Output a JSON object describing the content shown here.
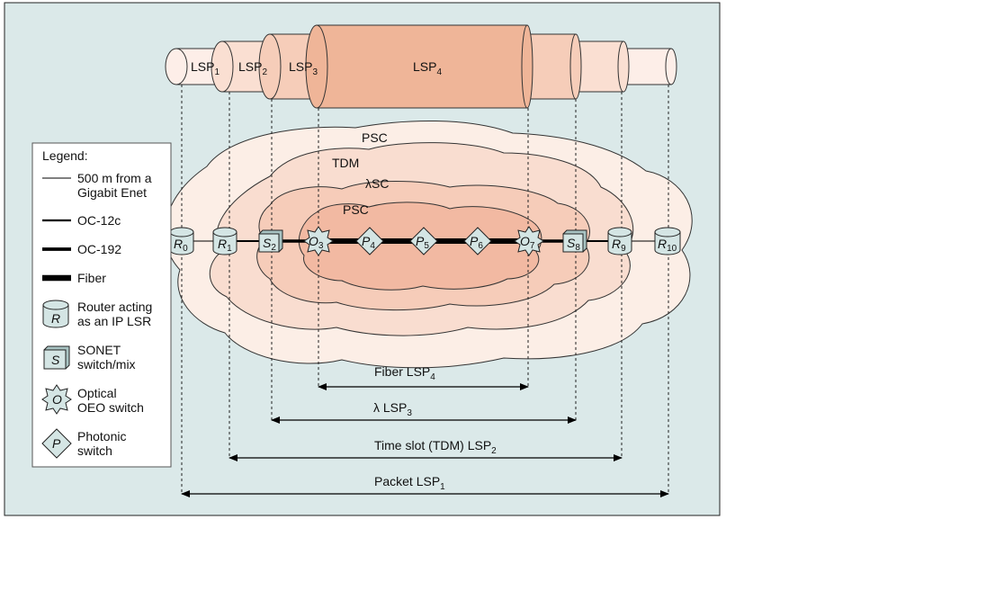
{
  "colors": {
    "panel": "#dbe9e9",
    "cloud_outer": "#fceee6",
    "cloud_tdm": "#f9ddd0",
    "cloud_lsc": "#f6ccb9",
    "cloud_inner": "#f2b9a2",
    "cyl_lsp1": "#fdeee8",
    "cyl_lsp2": "#fadfd2",
    "cyl_lsp3": "#f6cdb9",
    "cyl_lsp4": "#efb598",
    "node_fill": "#d4e5e4"
  },
  "pipes": [
    {
      "base": "LSP",
      "sub": "1"
    },
    {
      "base": "LSP",
      "sub": "2"
    },
    {
      "base": "LSP",
      "sub": "3"
    },
    {
      "base": "LSP",
      "sub": "4"
    }
  ],
  "regions": {
    "outer": "PSC",
    "tdm": "TDM",
    "lambda": "λSC",
    "inner": "PSC"
  },
  "nodes": [
    {
      "letter": "R",
      "sub": "0",
      "shape": "cylinder"
    },
    {
      "letter": "R",
      "sub": "1",
      "shape": "cylinder"
    },
    {
      "letter": "S",
      "sub": "2",
      "shape": "cube"
    },
    {
      "letter": "O",
      "sub": "3",
      "shape": "star"
    },
    {
      "letter": "P",
      "sub": "4",
      "shape": "diamond"
    },
    {
      "letter": "P",
      "sub": "5",
      "shape": "diamond"
    },
    {
      "letter": "P",
      "sub": "6",
      "shape": "diamond"
    },
    {
      "letter": "O",
      "sub": "7",
      "shape": "star"
    },
    {
      "letter": "S",
      "sub": "8",
      "shape": "cube"
    },
    {
      "letter": "R",
      "sub": "9",
      "shape": "cylinder"
    },
    {
      "letter": "R",
      "sub": "10",
      "shape": "cylinder"
    }
  ],
  "spans": [
    {
      "text": "Fiber LSP",
      "sub": "4"
    },
    {
      "text": "λ LSP",
      "sub": "3"
    },
    {
      "text": "Time slot (TDM) LSP",
      "sub": "2"
    },
    {
      "text": "Packet LSP",
      "sub": "1"
    }
  ],
  "legend": {
    "title": "Legend:",
    "items": [
      {
        "line1": "500 m from a",
        "line2": "Gigabit Enet",
        "symbol": "thin-line"
      },
      {
        "line1": "OC-12c",
        "line2": "",
        "symbol": "medium-line"
      },
      {
        "line1": "OC-192",
        "line2": "",
        "symbol": "thick-line"
      },
      {
        "line1": "Fiber",
        "line2": "",
        "symbol": "heavy-line"
      },
      {
        "line1": "Router acting",
        "line2": "as an IP LSR",
        "symbol": "cylinder",
        "glyph": "R"
      },
      {
        "line1": "SONET",
        "line2": "switch/mix",
        "symbol": "cube",
        "glyph": "S"
      },
      {
        "line1": "Optical",
        "line2": "OEO switch",
        "symbol": "star",
        "glyph": "O"
      },
      {
        "line1": "Photonic",
        "line2": "switch",
        "symbol": "diamond",
        "glyph": "P"
      }
    ]
  }
}
